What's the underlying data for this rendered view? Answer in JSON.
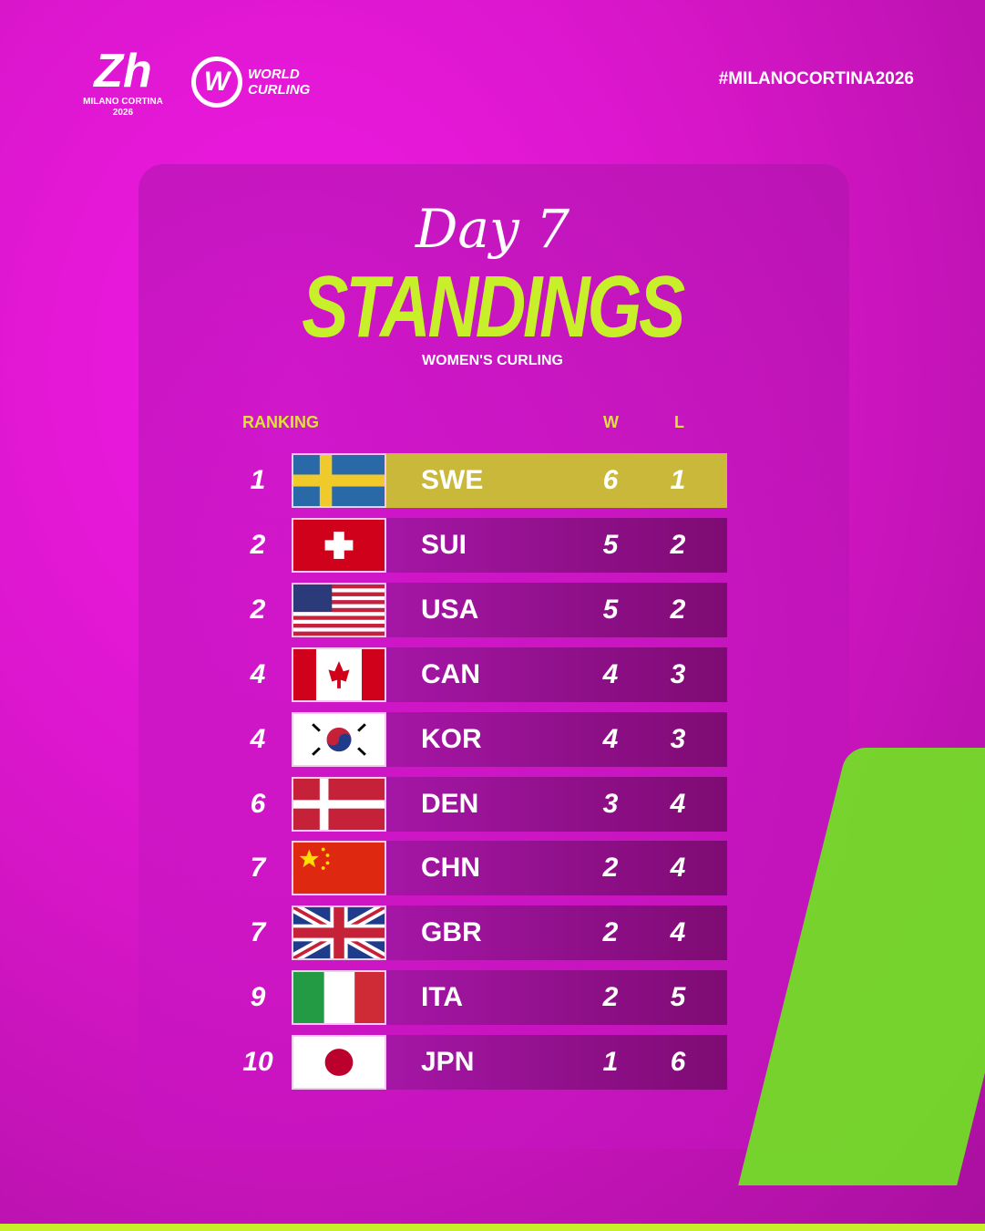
{
  "header": {
    "logo_event_line1": "MILANO CORTINA",
    "logo_event_line2": "2026",
    "logo_org_line1": "WORLD",
    "logo_org_line2": "CURLING",
    "hashtag": "#MILANOCORTINA2026"
  },
  "title": {
    "day": "Day 7",
    "main": "STANDINGS",
    "subtitle": "WOMEN'S CURLING"
  },
  "columns": {
    "ranking": "RANKING",
    "wins": "W",
    "losses": "L"
  },
  "colors": {
    "background": "#e515d8",
    "accent": "#c8f02a",
    "leader_bar": "#c9b83a",
    "row_bar": "#8e0d85"
  },
  "rows": [
    {
      "rank": "1",
      "code": "SWE",
      "w": "6",
      "l": "1",
      "flag": "sweden"
    },
    {
      "rank": "2",
      "code": "SUI",
      "w": "5",
      "l": "2",
      "flag": "switzerland"
    },
    {
      "rank": "2",
      "code": "USA",
      "w": "5",
      "l": "2",
      "flag": "usa"
    },
    {
      "rank": "4",
      "code": "CAN",
      "w": "4",
      "l": "3",
      "flag": "canada"
    },
    {
      "rank": "4",
      "code": "KOR",
      "w": "4",
      "l": "3",
      "flag": "korea"
    },
    {
      "rank": "6",
      "code": "DEN",
      "w": "3",
      "l": "4",
      "flag": "denmark"
    },
    {
      "rank": "7",
      "code": "CHN",
      "w": "2",
      "l": "4",
      "flag": "china"
    },
    {
      "rank": "7",
      "code": "GBR",
      "w": "2",
      "l": "4",
      "flag": "great-britain"
    },
    {
      "rank": "9",
      "code": "ITA",
      "w": "2",
      "l": "5",
      "flag": "italy"
    },
    {
      "rank": "10",
      "code": "JPN",
      "w": "1",
      "l": "6",
      "flag": "japan"
    }
  ]
}
